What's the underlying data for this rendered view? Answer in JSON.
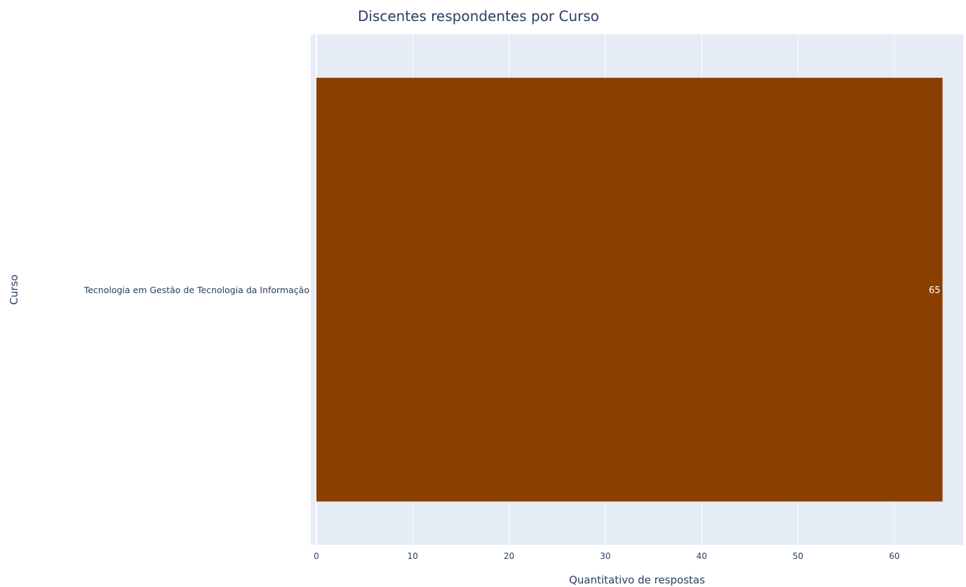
{
  "chart_data": {
    "type": "bar",
    "orientation": "horizontal",
    "title": "Discentes respondentes por Curso",
    "xlabel": "Quantitativo de respostas",
    "ylabel": "Curso",
    "categories": [
      "Tecnologia em Gestão de Tecnologia da Informação"
    ],
    "values": [
      65
    ],
    "data_labels": [
      "65"
    ],
    "xlim": [
      0,
      67
    ],
    "xticks": [
      0,
      10,
      20,
      30,
      40,
      50,
      60
    ],
    "xtick_labels": [
      "0",
      "10",
      "20",
      "30",
      "40",
      "50",
      "60"
    ],
    "grid": true,
    "legend": "none",
    "bar_color": "#8b3f00",
    "plot_bg": "#e5ecf6",
    "grid_color": "#ffffff",
    "text_color": "#2a3f5f"
  }
}
